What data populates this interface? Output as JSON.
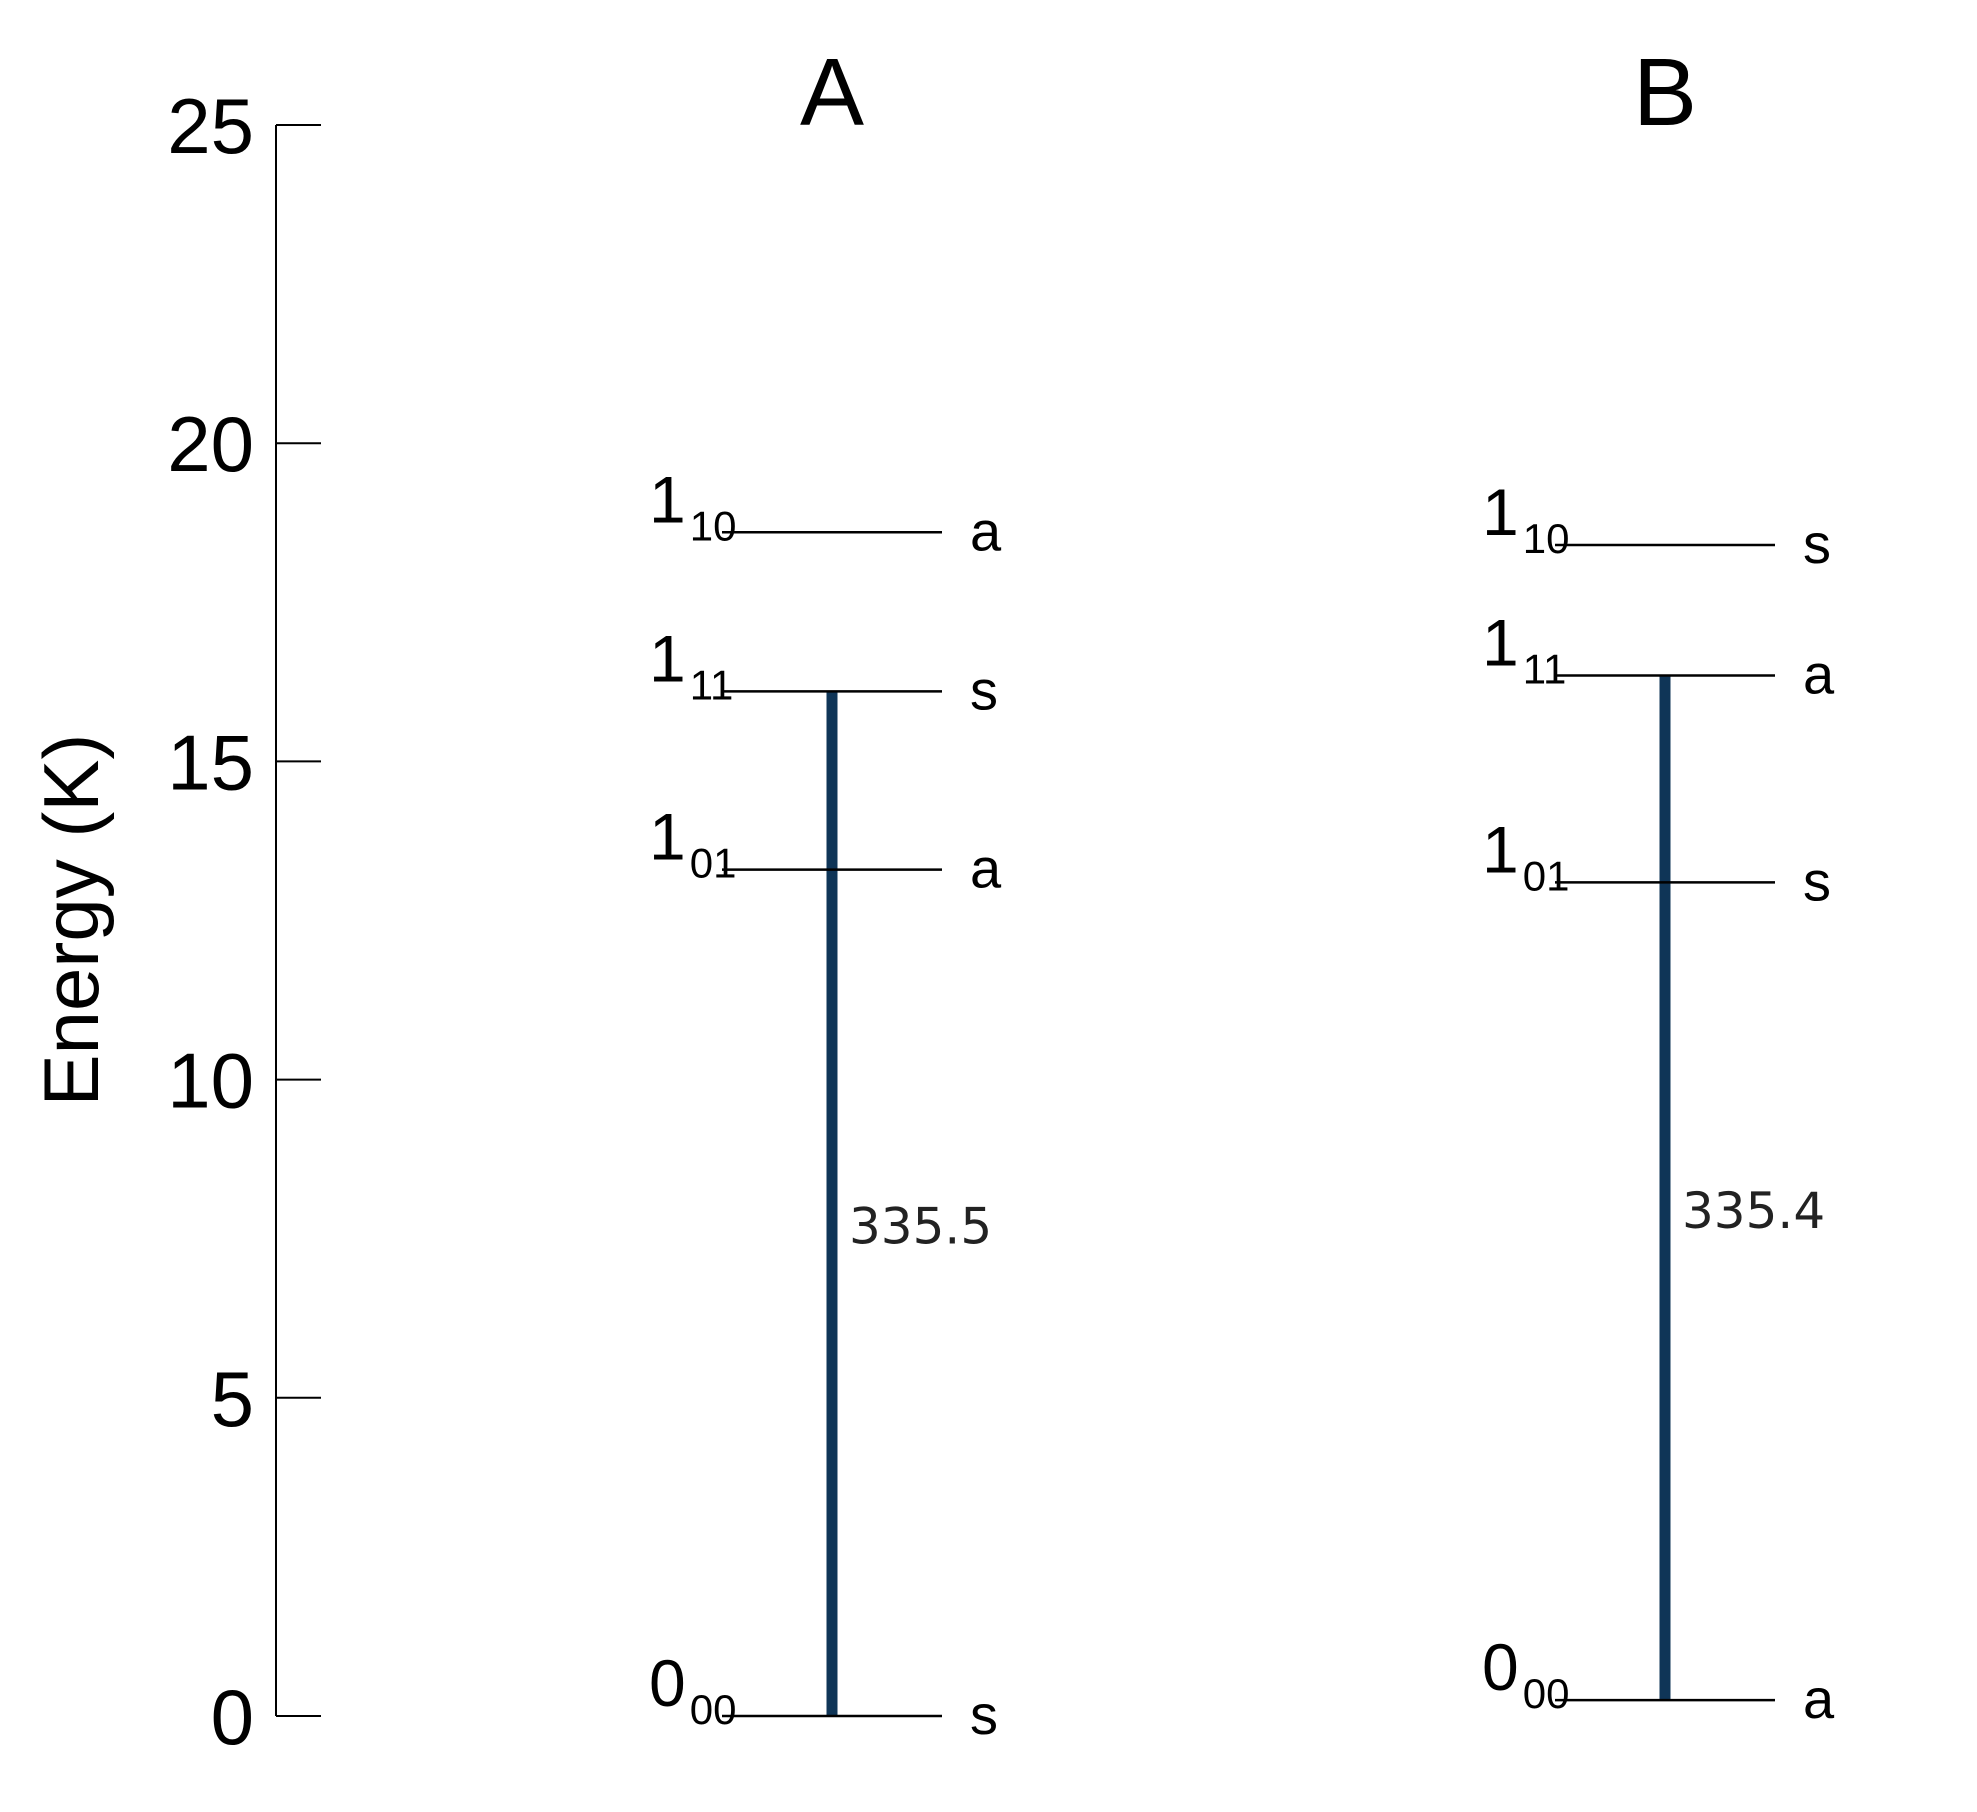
{
  "axis": {
    "label": "Energy (K)",
    "min": 0,
    "max": 25,
    "ticks": [
      "0",
      "5",
      "10",
      "15",
      "20",
      "25"
    ]
  },
  "colors": {
    "transition": "#0f3557",
    "text": "#000000"
  },
  "panels": [
    {
      "title": "A",
      "levels": [
        {
          "main": "0",
          "sub": "00",
          "energy": 0.0,
          "symmetry": "s"
        },
        {
          "main": "1",
          "sub": "01",
          "energy": 13.3,
          "symmetry": "a"
        },
        {
          "main": "1",
          "sub": "11",
          "energy": 16.1,
          "symmetry": "s"
        },
        {
          "main": "1",
          "sub": "10",
          "energy": 18.6,
          "symmetry": "a"
        }
      ],
      "transition": {
        "from_energy": 0.0,
        "to_energy": 16.1,
        "label": "335.5"
      }
    },
    {
      "title": "B",
      "levels": [
        {
          "main": "0",
          "sub": "00",
          "energy": 0.25,
          "symmetry": "a"
        },
        {
          "main": "1",
          "sub": "01",
          "energy": 13.1,
          "symmetry": "s"
        },
        {
          "main": "1",
          "sub": "11",
          "energy": 16.35,
          "symmetry": "a"
        },
        {
          "main": "1",
          "sub": "10",
          "energy": 18.4,
          "symmetry": "s"
        }
      ],
      "transition": {
        "from_energy": 0.25,
        "to_energy": 16.35,
        "label": "335.4"
      }
    }
  ]
}
